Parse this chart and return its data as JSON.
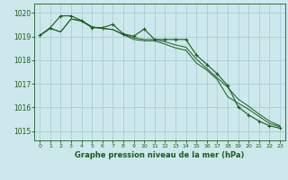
{
  "title": "Graphe pression niveau de la mer (hPa)",
  "background_color": "#cde8ec",
  "grid_color": "#a8cdd4",
  "line_color": "#1a5c1a",
  "xlim": [
    -0.5,
    23.5
  ],
  "ylim": [
    1014.6,
    1020.4
  ],
  "yticks": [
    1015,
    1016,
    1017,
    1018,
    1019,
    1020
  ],
  "xticks": [
    0,
    1,
    2,
    3,
    4,
    5,
    6,
    7,
    8,
    9,
    10,
    11,
    12,
    13,
    14,
    15,
    16,
    17,
    18,
    19,
    20,
    21,
    22,
    23
  ],
  "series1": [
    1019.05,
    1019.35,
    1019.2,
    1019.75,
    1019.65,
    1019.4,
    1019.35,
    1019.3,
    1019.1,
    1018.95,
    1018.88,
    1018.88,
    1018.78,
    1018.65,
    1018.55,
    1018.05,
    1017.65,
    1017.25,
    1016.85,
    1016.35,
    1016.05,
    1015.72,
    1015.42,
    1015.22
  ],
  "series2": [
    1019.05,
    1019.35,
    1019.2,
    1019.75,
    1019.68,
    1019.42,
    1019.35,
    1019.3,
    1019.08,
    1018.88,
    1018.82,
    1018.82,
    1018.68,
    1018.52,
    1018.42,
    1017.88,
    1017.58,
    1017.18,
    1016.45,
    1016.18,
    1015.92,
    1015.62,
    1015.32,
    1015.18
  ],
  "series3": [
    1019.05,
    1019.38,
    1019.88,
    1019.88,
    1019.68,
    1019.38,
    1019.38,
    1019.52,
    1019.12,
    1019.02,
    1019.32,
    1018.88,
    1018.88,
    1018.88,
    1018.88,
    1018.22,
    1017.82,
    1017.42,
    1016.92,
    1016.02,
    1015.68,
    1015.42,
    1015.22,
    1015.12
  ]
}
